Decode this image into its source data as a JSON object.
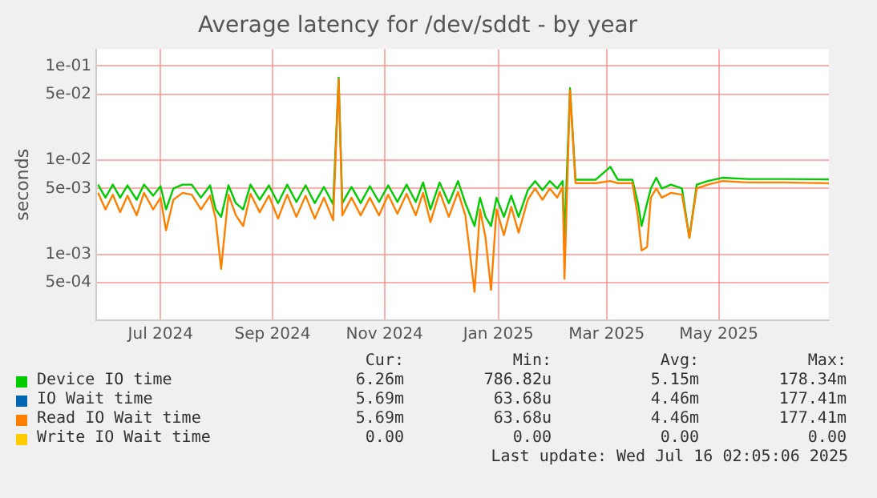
{
  "chart_data": {
    "type": "line",
    "title": "Average latency for /dev/sddt - by year",
    "ylabel": "seconds",
    "log": true,
    "grid": true,
    "legend": "bottom",
    "marker": "none",
    "line_style": "solid",
    "xlim": [
      "2024-06-11",
      "2025-07-15"
    ],
    "xticks": [
      {
        "value": "2024-07-16",
        "label": "Jul 2024"
      },
      {
        "value": "2024-09-15",
        "label": "Sep 2024"
      },
      {
        "value": "2024-11-15",
        "label": "Nov 2024"
      },
      {
        "value": "2025-01-16",
        "label": "Jan 2025"
      },
      {
        "value": "2025-03-16",
        "label": "Mar 2025"
      },
      {
        "value": "2025-05-16",
        "label": "May 2025"
      }
    ],
    "ylim": [
      0.0002,
      0.15
    ],
    "yticks": [
      {
        "value": 0.0005,
        "label": "5e-04"
      },
      {
        "value": 0.001,
        "label": "1e-03"
      },
      {
        "value": 0.005,
        "label": "5e-03"
      },
      {
        "value": 0.01,
        "label": "1e-02"
      },
      {
        "value": 0.05,
        "label": "5e-02"
      },
      {
        "value": 0.1,
        "label": "1e-01"
      }
    ],
    "x": [
      "2024-06-12",
      "2024-06-16",
      "2024-06-20",
      "2024-06-24",
      "2024-06-28",
      "2024-07-03",
      "2024-07-07",
      "2024-07-12",
      "2024-07-16",
      "2024-07-19",
      "2024-07-23",
      "2024-07-28",
      "2024-08-02",
      "2024-08-07",
      "2024-08-12",
      "2024-08-15",
      "2024-08-18",
      "2024-08-22",
      "2024-08-26",
      "2024-08-30",
      "2024-09-03",
      "2024-09-08",
      "2024-09-13",
      "2024-09-18",
      "2024-09-23",
      "2024-09-28",
      "2024-10-03",
      "2024-10-08",
      "2024-10-13",
      "2024-10-18",
      "2024-10-21",
      "2024-10-23",
      "2024-10-28",
      "2024-11-02",
      "2024-11-07",
      "2024-11-12",
      "2024-11-17",
      "2024-11-22",
      "2024-11-27",
      "2024-12-02",
      "2024-12-06",
      "2024-12-10",
      "2024-12-15",
      "2024-12-20",
      "2024-12-25",
      "2024-12-29",
      "2025-01-03",
      "2025-01-06",
      "2025-01-09",
      "2025-01-12",
      "2025-01-15",
      "2025-01-19",
      "2025-01-23",
      "2025-01-27",
      "2025-02-01",
      "2025-02-05",
      "2025-02-09",
      "2025-02-13",
      "2025-02-17",
      "2025-02-20",
      "2025-02-21",
      "2025-02-24",
      "2025-02-27",
      "2025-03-10",
      "2025-03-18",
      "2025-03-22",
      "2025-03-30",
      "2025-04-02",
      "2025-04-04",
      "2025-04-07",
      "2025-04-09",
      "2025-04-12",
      "2025-04-15",
      "2025-04-20",
      "2025-04-26",
      "2025-04-30",
      "2025-05-04",
      "2025-05-10",
      "2025-05-18",
      "2025-06-01",
      "2025-06-20",
      "2025-07-15"
    ],
    "series": [
      {
        "name": "Device IO time",
        "color": "#00cc00",
        "values": [
          0.0055,
          0.004,
          0.0055,
          0.004,
          0.0054,
          0.0038,
          0.0055,
          0.0042,
          0.0053,
          0.003,
          0.005,
          0.0055,
          0.0055,
          0.004,
          0.0054,
          0.003,
          0.0025,
          0.0054,
          0.0035,
          0.003,
          0.0055,
          0.0038,
          0.0054,
          0.0035,
          0.0055,
          0.0036,
          0.0054,
          0.0035,
          0.0052,
          0.0034,
          0.075,
          0.0035,
          0.0052,
          0.0035,
          0.0053,
          0.0036,
          0.0054,
          0.0036,
          0.0055,
          0.0036,
          0.0058,
          0.003,
          0.0058,
          0.0035,
          0.006,
          0.0035,
          0.002,
          0.004,
          0.0025,
          0.002,
          0.004,
          0.0025,
          0.0042,
          0.0025,
          0.0048,
          0.006,
          0.0048,
          0.006,
          0.005,
          0.006,
          0.0015,
          0.058,
          0.0062,
          0.0062,
          0.0085,
          0.0062,
          0.0062,
          0.0035,
          0.002,
          0.0035,
          0.005,
          0.0065,
          0.005,
          0.0055,
          0.005,
          0.0015,
          0.0055,
          0.006,
          0.0065,
          0.0063,
          0.0063,
          0.00626
        ]
      },
      {
        "name": "IO Wait time",
        "color": "#0066b3",
        "values": [
          null,
          null,
          null,
          null,
          null,
          null,
          null,
          null,
          null,
          null,
          null,
          null,
          null,
          null,
          null,
          null,
          null,
          null,
          null,
          null,
          null,
          null,
          null,
          null,
          null,
          null,
          null,
          null,
          null,
          null,
          null,
          null,
          null,
          null,
          null,
          null,
          null,
          null,
          null,
          null,
          null,
          null,
          null,
          null,
          null,
          null,
          null,
          null,
          null,
          null,
          null,
          null,
          null,
          null,
          null,
          null,
          null,
          null,
          null,
          null,
          null,
          null,
          null,
          null,
          null,
          null,
          null,
          null,
          null,
          null,
          null,
          null,
          null,
          null,
          null,
          null,
          null,
          null,
          null,
          null,
          null,
          null
        ]
      },
      {
        "name": "Read IO Wait time",
        "color": "#ff8000",
        "values": [
          0.0045,
          0.003,
          0.0043,
          0.0028,
          0.0042,
          0.0026,
          0.0045,
          0.003,
          0.004,
          0.0018,
          0.0038,
          0.0045,
          0.0043,
          0.003,
          0.0042,
          0.0024,
          0.0007,
          0.0043,
          0.0026,
          0.002,
          0.0044,
          0.0028,
          0.0042,
          0.0024,
          0.0043,
          0.0025,
          0.0042,
          0.0024,
          0.004,
          0.0023,
          0.072,
          0.0026,
          0.004,
          0.0026,
          0.004,
          0.0026,
          0.0043,
          0.0027,
          0.0044,
          0.0026,
          0.0045,
          0.0022,
          0.0046,
          0.0025,
          0.0046,
          0.0026,
          0.0004,
          0.003,
          0.0015,
          0.00042,
          0.003,
          0.0016,
          0.0032,
          0.0017,
          0.0038,
          0.005,
          0.0038,
          0.005,
          0.004,
          0.0052,
          0.00055,
          0.055,
          0.0057,
          0.0057,
          0.006,
          0.0057,
          0.0057,
          0.0025,
          0.0011,
          0.0012,
          0.004,
          0.005,
          0.004,
          0.0045,
          0.0043,
          0.0015,
          0.005,
          0.0055,
          0.006,
          0.0058,
          0.0058,
          0.00569
        ]
      },
      {
        "name": "Write IO Wait time",
        "color": "#ffcc00",
        "values": [
          null,
          null,
          null,
          null,
          null,
          null,
          null,
          null,
          null,
          null,
          null,
          null,
          null,
          null,
          null,
          null,
          null,
          null,
          null,
          null,
          null,
          null,
          null,
          null,
          null,
          null,
          null,
          null,
          null,
          null,
          null,
          null,
          null,
          null,
          null,
          null,
          null,
          null,
          null,
          null,
          null,
          null,
          null,
          null,
          null,
          null,
          null,
          null,
          null,
          null,
          null,
          null,
          null,
          null,
          null,
          null,
          null,
          null,
          null,
          null,
          null,
          null,
          null,
          null,
          null,
          null,
          null,
          null,
          null,
          null,
          null,
          null,
          null,
          null,
          null,
          null,
          null,
          null,
          null,
          null,
          null,
          null
        ]
      }
    ],
    "annotations": [
      "Cur:",
      "Min:",
      "Avg:",
      "Max:",
      "6.26m",
      "786.82u",
      "5.15m",
      "178.34m",
      "5.69m",
      "63.68u",
      "4.46m",
      "177.41m",
      "5.69m",
      "63.68u",
      "4.46m",
      "177.41m",
      "0.00",
      "0.00",
      "0.00",
      "0.00",
      "Last update: Wed Jul 16 02:05:06 2025"
    ]
  }
}
